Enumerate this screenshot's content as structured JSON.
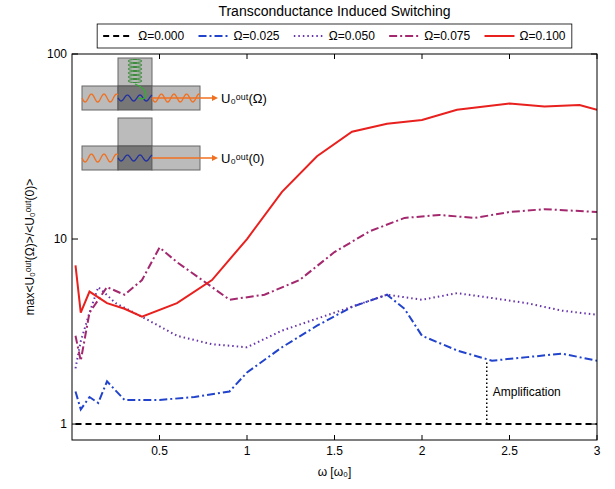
{
  "chart_data": {
    "type": "line",
    "title": "Transconductance Induced Switching",
    "x_label": "ω [ω₀]",
    "y_label": "max<U₀ᵒᵘᵗ(Ω)>/<U₀ᵒᵘᵗ(0)>",
    "log": "y",
    "grid": false,
    "legend": "top",
    "xlim": [
      0,
      3
    ],
    "ylim": [
      0.82,
      100
    ],
    "xticks": [
      0.5,
      1,
      1.5,
      2,
      2.5,
      3
    ],
    "yticks": [
      1,
      10,
      100
    ],
    "inset_labels": [
      "U₀ᵒᵘᵗ(Ω)",
      "U₀ᵒᵘᵗ(0)"
    ],
    "annotation": {
      "text": "Amplification",
      "x": 2.37,
      "y_from": 1,
      "y_to": 2.2
    },
    "series": [
      {
        "name": "Ω=0.000",
        "color": "#000000",
        "line_style": "dashed",
        "x": [
          0.02,
          3
        ],
        "values": [
          1,
          1
        ]
      },
      {
        "name": "Ω=0.025",
        "color": "#2244cc",
        "line_style": "dashdot",
        "x": [
          0.02,
          0.05,
          0.1,
          0.15,
          0.2,
          0.3,
          0.5,
          0.7,
          0.9,
          1.0,
          1.2,
          1.4,
          1.6,
          1.8,
          1.9,
          2.0,
          2.2,
          2.4,
          2.6,
          2.8,
          3.0
        ],
        "values": [
          1.5,
          1.2,
          1.4,
          1.3,
          1.7,
          1.35,
          1.35,
          1.4,
          1.5,
          1.9,
          2.6,
          3.4,
          4.3,
          5.0,
          4.2,
          3.0,
          2.5,
          2.2,
          2.3,
          2.4,
          2.2
        ]
      },
      {
        "name": "Ω=0.050",
        "color": "#6633aa",
        "line_style": "dotted",
        "x": [
          0.02,
          0.05,
          0.1,
          0.15,
          0.25,
          0.4,
          0.6,
          0.8,
          1.0,
          1.2,
          1.5,
          1.8,
          2.0,
          2.2,
          2.4,
          2.6,
          2.8,
          3.0
        ],
        "values": [
          2.0,
          2.8,
          4.0,
          5.5,
          4.5,
          3.8,
          3.0,
          2.7,
          2.6,
          3.2,
          4.0,
          5.0,
          4.7,
          5.1,
          4.8,
          4.5,
          4.1,
          3.9
        ]
      },
      {
        "name": "Ω=0.075",
        "color": "#a3286e",
        "line_style": "dashdot",
        "x": [
          0.02,
          0.05,
          0.1,
          0.2,
          0.3,
          0.4,
          0.5,
          0.6,
          0.8,
          0.9,
          1.1,
          1.3,
          1.5,
          1.7,
          1.9,
          2.1,
          2.3,
          2.5,
          2.7,
          3.0
        ],
        "values": [
          3.0,
          2.2,
          4.0,
          5.5,
          5.0,
          6.0,
          9.0,
          7.5,
          5.5,
          4.7,
          5.0,
          6.0,
          8.5,
          11,
          13,
          13.5,
          13,
          14,
          14.5,
          14
        ]
      },
      {
        "name": "Ω=0.100",
        "color": "#e8201e",
        "line_style": "solid",
        "x": [
          0.02,
          0.05,
          0.1,
          0.2,
          0.3,
          0.4,
          0.6,
          0.8,
          1.0,
          1.2,
          1.4,
          1.6,
          1.8,
          2.0,
          2.2,
          2.5,
          2.7,
          2.9,
          3.0
        ],
        "values": [
          7.2,
          4.0,
          5.2,
          4.5,
          4.2,
          3.8,
          4.5,
          6.0,
          10,
          18,
          28,
          38,
          42,
          44,
          50,
          54,
          52,
          53,
          50
        ]
      }
    ]
  }
}
